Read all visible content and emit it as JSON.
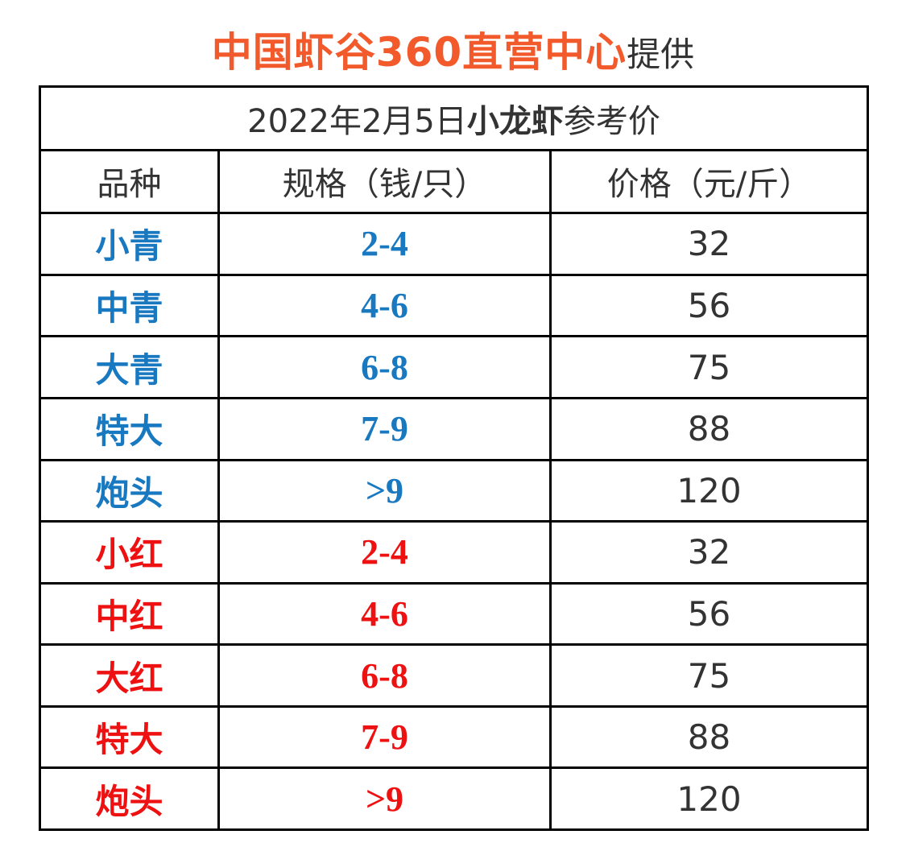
{
  "header": {
    "brand": "中国虾谷360直营中心",
    "suffix": "提供"
  },
  "table": {
    "title": {
      "date": "2022年2月5日",
      "product": "小龙虾",
      "suffix": "参考价"
    },
    "columns": [
      "品种",
      "规格（钱/只）",
      "价格（元/斤）"
    ],
    "rows": [
      {
        "variety": "小青",
        "spec": "2-4",
        "price": "32",
        "color": "#1878c0"
      },
      {
        "variety": "中青",
        "spec": "4-6",
        "price": "56",
        "color": "#1878c0"
      },
      {
        "variety": "大青",
        "spec": "6-8",
        "price": "75",
        "color": "#1878c0"
      },
      {
        "variety": "特大",
        "spec": "7-9",
        "price": "88",
        "color": "#1878c0"
      },
      {
        "variety": "炮头",
        "spec": ">9",
        "price": "120",
        "color": "#1878c0"
      },
      {
        "variety": "小红",
        "spec": "2-4",
        "price": "32",
        "color": "#ee1111"
      },
      {
        "variety": "中红",
        "spec": "4-6",
        "price": "56",
        "color": "#ee1111"
      },
      {
        "variety": "大红",
        "spec": "6-8",
        "price": "75",
        "color": "#ee1111"
      },
      {
        "variety": "特大",
        "spec": "7-9",
        "price": "88",
        "color": "#ee1111"
      },
      {
        "variety": "炮头",
        "spec": ">9",
        "price": "120",
        "color": "#ee1111"
      }
    ]
  },
  "colors": {
    "brand": "#f25a2c",
    "blue_variety": "#1878c0",
    "red_variety": "#ee1111",
    "text": "#333333",
    "border": "#000000"
  }
}
